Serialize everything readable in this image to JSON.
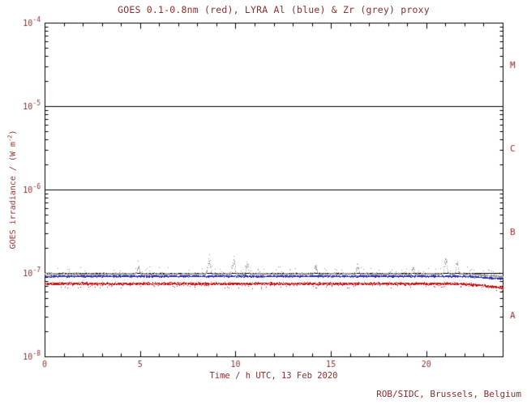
{
  "footer": "ROB/SIDC, Brussels, Belgium",
  "colors": {
    "background": "#ffffff",
    "frame": "#000000",
    "text": "#8b2f2f",
    "goes_red": "#cc1111",
    "lyra_al_blue": "#2a2ab0",
    "lyra_zr_grey": "#9b9b9b"
  },
  "chart_data": {
    "type": "scatter",
    "title": "GOES 0.1-0.8nm (red), LYRA Al (blue) & Zr (grey) proxy",
    "xlabel": "Time / h UTC, 13 Feb 2020",
    "ylabel": {
      "prefix": "GOES irradiance / (W m",
      "sup": "-2",
      "suffix": ")"
    },
    "x_range_hours": [
      0,
      24
    ],
    "x_major_ticks": [
      0,
      5,
      10,
      15,
      20
    ],
    "x_minor_step": 1,
    "y_scale": "log",
    "y_log_range_exponents": [
      -8,
      -4
    ],
    "y_tick_exponents": [
      -8,
      -7,
      -6,
      -5,
      -4
    ],
    "grid": false,
    "hlines_wm2": [
      1e-07,
      1e-06,
      1e-05
    ],
    "flare_class_labels": [
      {
        "label": "M",
        "level_wm2": 3.16e-05
      },
      {
        "label": "C",
        "level_wm2": 3.16e-06
      },
      {
        "label": "B",
        "level_wm2": 3.16e-07
      },
      {
        "label": "A",
        "level_wm2": 3.16e-08
      }
    ],
    "series": [
      {
        "name": "GOES 0.1-0.8nm",
        "color_key": "goes_red",
        "mean_level_wm2": 7.5e-08,
        "scatter_log10": 0.022,
        "outlier_prob": 0.05,
        "outlier_log10": -0.05,
        "end_dip_log10": 0.05,
        "spikes": []
      },
      {
        "name": "LYRA Al proxy",
        "color_key": "lyra_al_blue",
        "mean_level_wm2": 9.2e-08,
        "scatter_log10": 0.014,
        "outlier_prob": 0.015,
        "outlier_log10": 0.04,
        "end_dip_log10": 0.03,
        "spikes": []
      },
      {
        "name": "LYRA Zr proxy",
        "color_key": "lyra_zr_grey",
        "mean_level_wm2": 9.8e-08,
        "scatter_log10": 0.02,
        "outlier_prob": 0.05,
        "outlier_log10": 0.08,
        "end_dip_log10": 0.03,
        "spikes": [
          {
            "t_h": 4.9,
            "peak_wm2": 1.2e-07,
            "width_h": 0.05
          },
          {
            "t_h": 8.6,
            "peak_wm2": 1.45e-07,
            "width_h": 0.06
          },
          {
            "t_h": 9.9,
            "peak_wm2": 1.4e-07,
            "width_h": 0.05
          },
          {
            "t_h": 10.6,
            "peak_wm2": 1.3e-07,
            "width_h": 0.05
          },
          {
            "t_h": 14.2,
            "peak_wm2": 1.2e-07,
            "width_h": 0.05
          },
          {
            "t_h": 16.4,
            "peak_wm2": 1.25e-07,
            "width_h": 0.05
          },
          {
            "t_h": 19.3,
            "peak_wm2": 1.18e-07,
            "width_h": 0.04
          },
          {
            "t_h": 21.0,
            "peak_wm2": 1.45e-07,
            "width_h": 0.06
          },
          {
            "t_h": 21.6,
            "peak_wm2": 1.3e-07,
            "width_h": 0.05
          }
        ]
      }
    ]
  }
}
